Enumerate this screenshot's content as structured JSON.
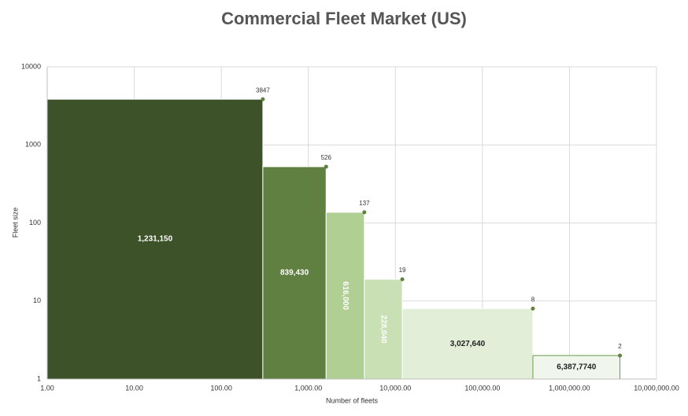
{
  "chart_data": {
    "type": "histogram",
    "title": "Commercial Fleet Market (US)",
    "xlabel": "Number of fleets",
    "ylabel": "Fleet size",
    "bins": [
      1,
      300,
      1600,
      4400,
      12000,
      380000,
      3800000
    ],
    "values": [
      3847,
      526,
      137,
      19,
      8,
      2
    ],
    "bar_labels": [
      "1,231,150",
      "839,430",
      "616,000",
      "228,040",
      "3,027,640",
      "6,387,7740"
    ],
    "colors": [
      "#3d5229",
      "#5f8040",
      "#b0cf92",
      "#c9dfb4",
      "#e2eed8",
      "#f0f6eb"
    ],
    "point_color": "#5f8040",
    "xlog": true,
    "ylog": true,
    "grid": true,
    "xlim": [
      1,
      10000000
    ],
    "ylim": [
      1,
      10000
    ],
    "xticks": [
      {
        "value": 1,
        "label": "1.00"
      },
      {
        "value": 10,
        "label": "10.00"
      },
      {
        "value": 100,
        "label": "100.00"
      },
      {
        "value": 1000,
        "label": "1,000.00"
      },
      {
        "value": 10000,
        "label": "10,000.00"
      },
      {
        "value": 100000,
        "label": "100,000.00"
      },
      {
        "value": 1000000,
        "label": "1,000,000.00"
      },
      {
        "value": 10000000,
        "label": "10,000,000.00"
      }
    ],
    "yticks": [
      1,
      10,
      100,
      1000,
      10000
    ]
  }
}
